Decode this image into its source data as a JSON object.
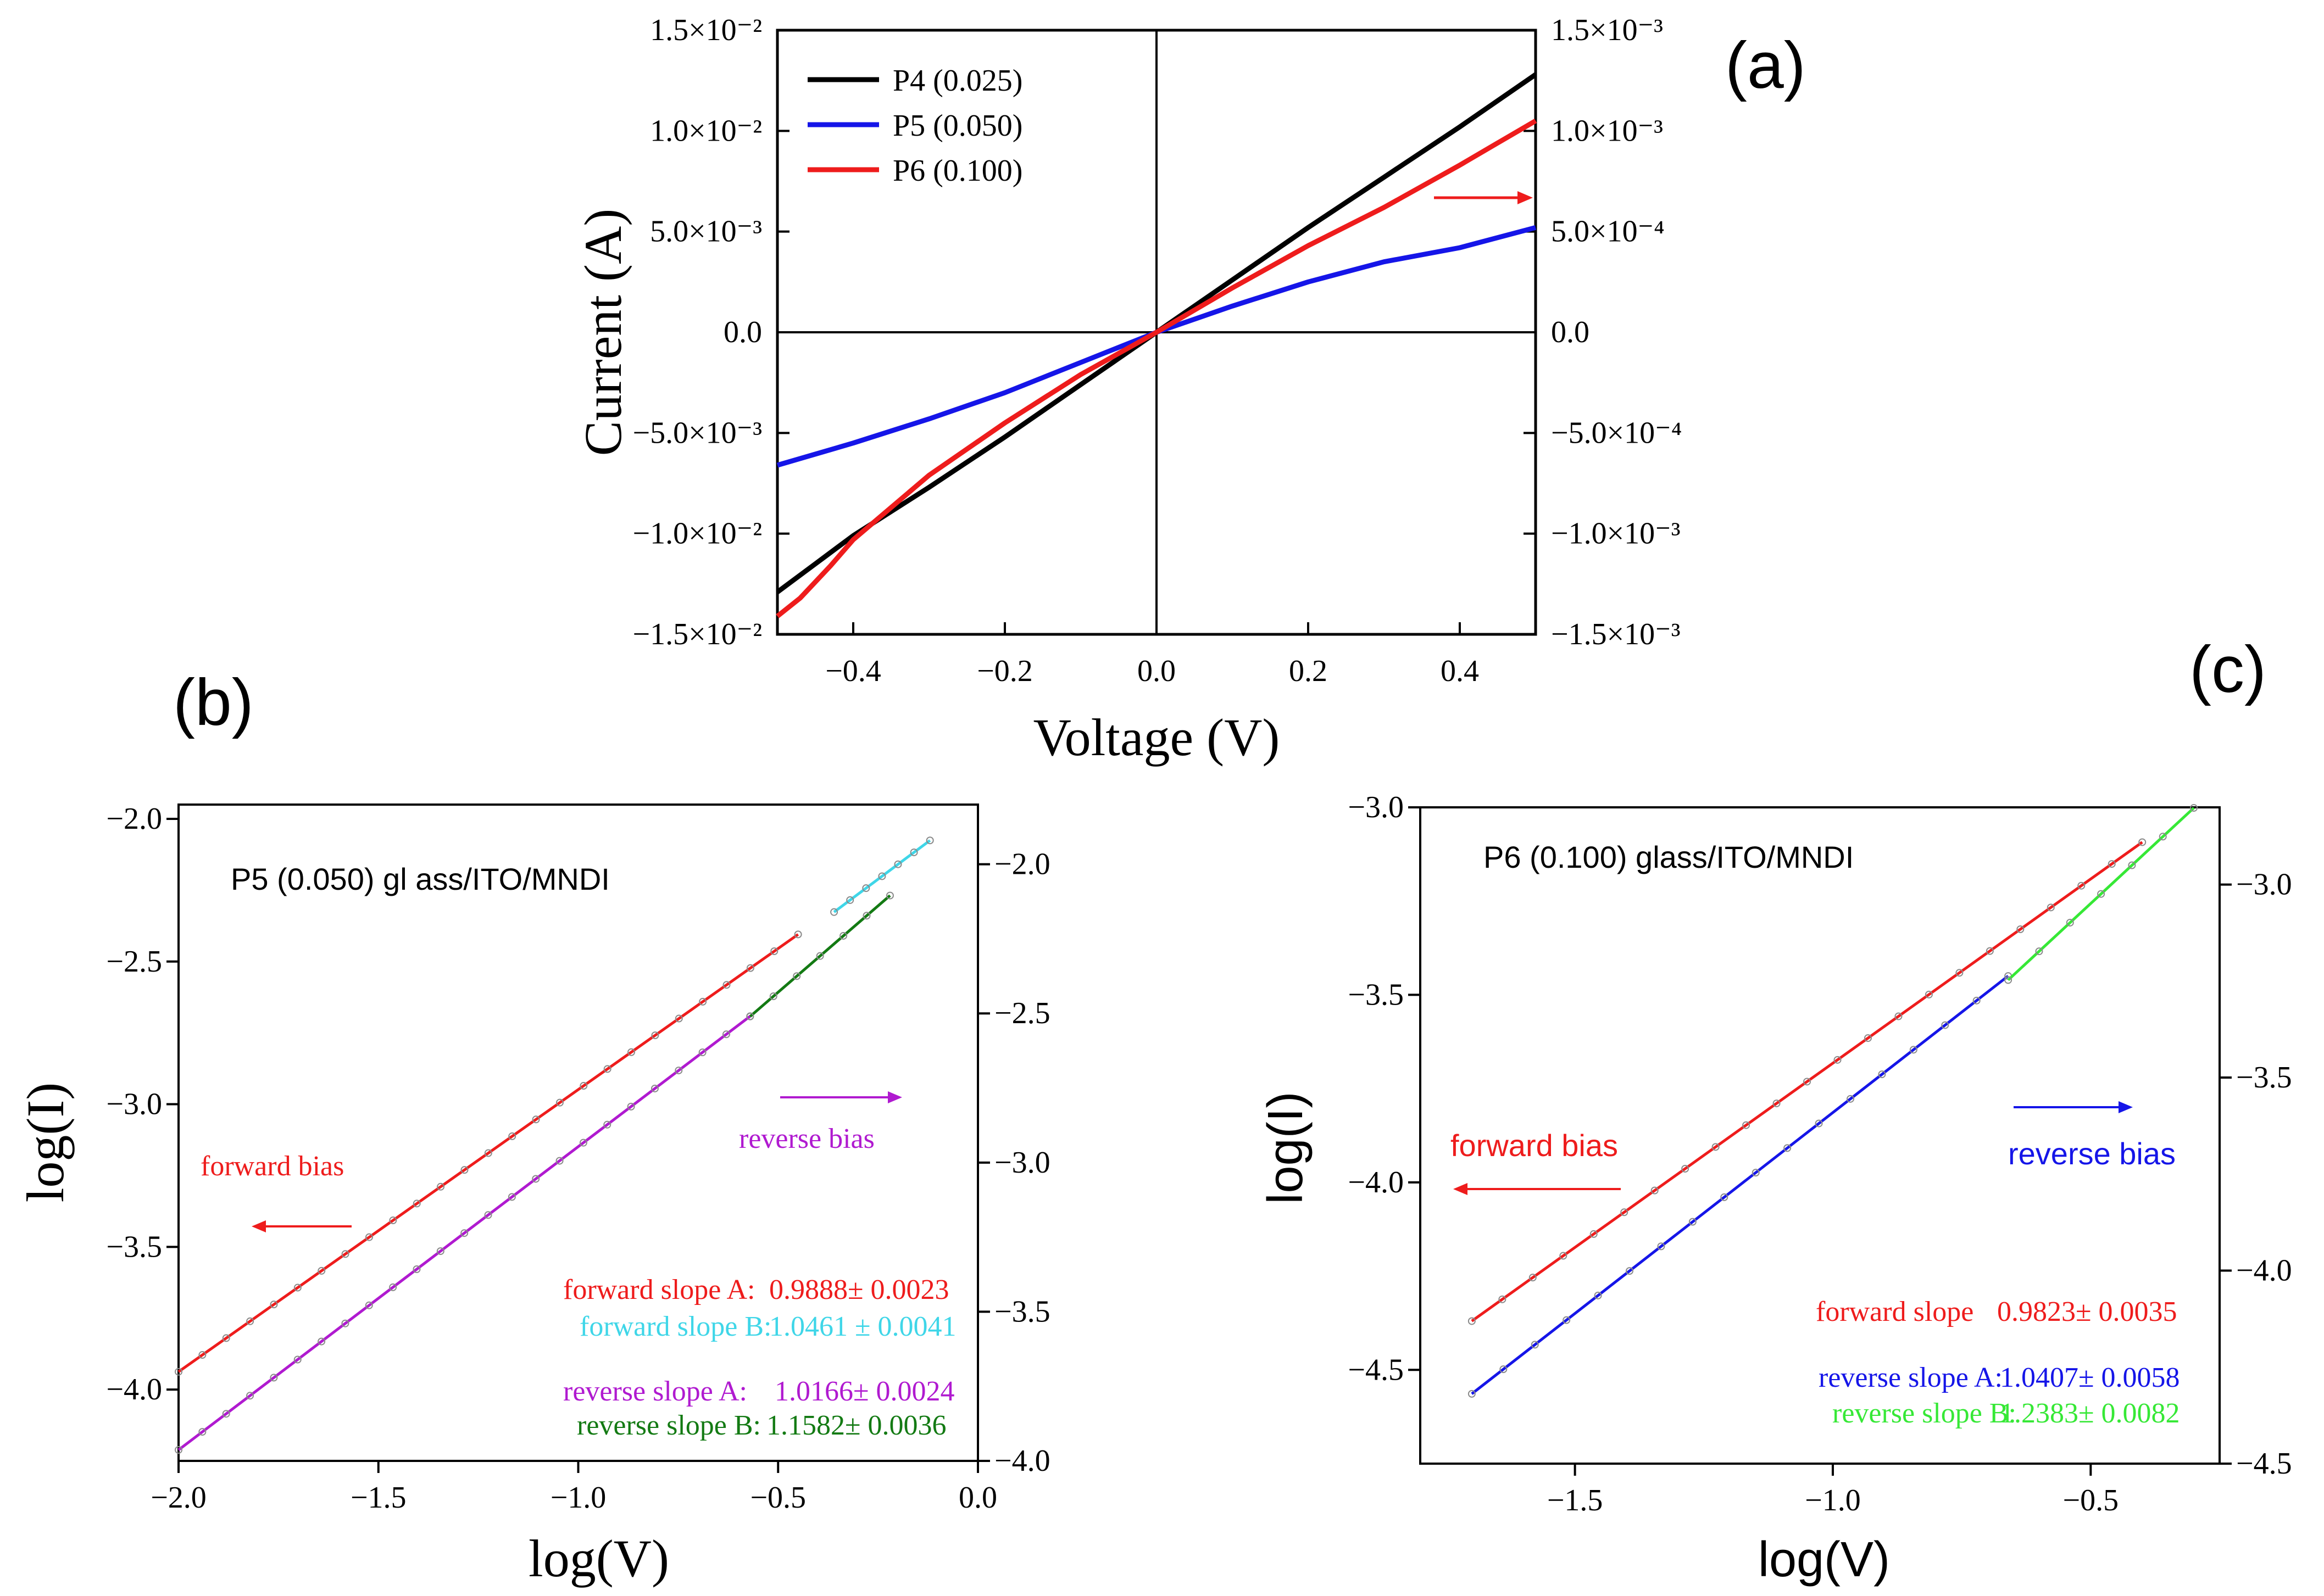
{
  "chart_data": [
    {
      "panel": "(a)",
      "type": "line",
      "xlabel": "Voltage (V)",
      "ylabel": "Current (A)",
      "xlim": [
        -0.5,
        0.5
      ],
      "ylim_left": [
        -0.015,
        0.015
      ],
      "ylim_right": [
        -0.0015,
        0.0015
      ],
      "x_ticks": [
        "−0.4",
        "−0.2",
        "0.0",
        "0.2",
        "0.4"
      ],
      "x_tick_values": [
        -0.4,
        -0.2,
        0.0,
        0.2,
        0.4
      ],
      "y_left_ticks": [
        "1.5×10⁻²",
        "1.0×10⁻²",
        "5.0×10⁻³",
        "0.0",
        "−5.0×10⁻³",
        "−1.0×10⁻²",
        "−1.5×10⁻²"
      ],
      "y_left_tick_values": [
        0.015,
        0.01,
        0.005,
        0,
        -0.005,
        -0.01,
        -0.015
      ],
      "y_right_ticks": [
        "1.5×10⁻³",
        "1.0×10⁻³",
        "5.0×10⁻⁴",
        "0.0",
        "−5.0×10⁻⁴",
        "−1.0×10⁻³",
        "−1.5×10⁻³"
      ],
      "y_right_tick_values": [
        0.0015,
        0.001,
        0.0005,
        0,
        -0.0005,
        -0.001,
        -0.0015
      ],
      "legend": "top-left",
      "series": [
        {
          "name": "P4 (0.025)",
          "color": "#000000",
          "axis": "left",
          "x": [
            -0.5,
            -0.45,
            -0.4,
            -0.3,
            -0.2,
            -0.1,
            0.0,
            0.1,
            0.2,
            0.3,
            0.4,
            0.5
          ],
          "y": [
            -0.0129,
            -0.0115,
            -0.0101,
            -0.0077,
            -0.0052,
            -0.0026,
            0.0,
            0.0026,
            0.0052,
            0.0077,
            0.0102,
            0.0128
          ]
        },
        {
          "name": "P5 (0.050)",
          "color": "#1515e8",
          "axis": "right",
          "x": [
            -0.5,
            -0.4,
            -0.3,
            -0.2,
            -0.1,
            0.0,
            0.1,
            0.2,
            0.3,
            0.4,
            0.5
          ],
          "y": [
            -0.00066,
            -0.00055,
            -0.00043,
            -0.0003,
            -0.00015,
            0.0,
            0.00013,
            0.00025,
            0.00035,
            0.00042,
            0.00052
          ]
        },
        {
          "name": "P6 (0.100)",
          "color": "#ee1c1c",
          "axis": "left",
          "x": [
            -0.5,
            -0.47,
            -0.43,
            -0.4,
            -0.3,
            -0.2,
            -0.1,
            0.0,
            0.1,
            0.2,
            0.3,
            0.4,
            0.45,
            0.5
          ],
          "y": [
            -0.0141,
            -0.0132,
            -0.0116,
            -0.0103,
            -0.0071,
            -0.0045,
            -0.0021,
            0.0,
            0.0022,
            0.0043,
            0.0062,
            0.0083,
            0.0094,
            0.0105
          ]
        }
      ],
      "annotation_arrow": "right"
    },
    {
      "panel": "(b)",
      "type": "scatter",
      "title": "P5 (0.050)  gl ass/ITO/MNDI",
      "xlabel": "log(V)",
      "ylabel": "log(I)",
      "xlim": [
        -2.0,
        0.0
      ],
      "ylim_left": [
        -4.25,
        -1.95
      ],
      "ylim_right": [
        -4.0,
        -1.8
      ],
      "x_ticks": [
        "−2.0",
        "−1.5",
        "−1.0",
        "−0.5",
        "0.0"
      ],
      "x_tick_values": [
        -2.0,
        -1.5,
        -1.0,
        -0.5,
        0.0
      ],
      "y_left_ticks": [
        "−2.0",
        "−2.5",
        "−3.0",
        "−3.5",
        "−4.0"
      ],
      "y_left_tick_values": [
        -2.0,
        -2.5,
        -3.0,
        -3.5,
        -4.0
      ],
      "y_right_ticks": [
        "−2.0",
        "−2.5",
        "−3.0",
        "−3.5",
        "−4.0"
      ],
      "y_right_tick_values": [
        -2.0,
        -2.5,
        -3.0,
        -3.5,
        -4.0
      ],
      "forward_label": "forward bias",
      "reverse_label": "reverse bias",
      "fits": [
        {
          "label": "forward slope A:",
          "value": "0.9888± 0.0023",
          "color": "#ee1c1c",
          "axis": "left",
          "x": [
            -2.0,
            -0.45
          ],
          "slope": 0.9888,
          "intercept": -1.96
        },
        {
          "label": "forward slope B:",
          "value": "1.0461 ± 0.0041",
          "color": "#3fd6e8",
          "axis": "left",
          "x": [
            -0.36,
            -0.12
          ],
          "slope": 1.0461,
          "intercept": -1.95
        },
        {
          "label": "reverse slope A:",
          "value": "1.0166± 0.0024",
          "color": "#b01ad0",
          "axis": "right",
          "x": [
            -2.0,
            -0.57
          ],
          "slope": 1.0166,
          "intercept": -1.93
        },
        {
          "label": "reverse slope B:",
          "value": "1.1582± 0.0036",
          "color": "#137a13",
          "axis": "right",
          "x": [
            -0.57,
            -0.22
          ],
          "slope": 1.1582,
          "intercept": -1.85
        }
      ],
      "label_displays": [
        {
          "label": "forward slope A:",
          "value": "0.9888± 0.0023"
        },
        {
          "label": "forward slope B:",
          "value": "1.0461 ± 0.0041"
        },
        {
          "label": "reverse slope A:",
          "value": "1.0166± 0.0024"
        },
        {
          "label": "reverse slope B:",
          "value": "1.1582± 0.0036"
        }
      ]
    },
    {
      "panel": "(c)",
      "type": "scatter",
      "title": "P6 (0.100)  glass/ITO/MNDI",
      "xlabel": "log(V)",
      "ylabel": "log(I)",
      "xlim": [
        -1.8,
        -0.25
      ],
      "ylim_left": [
        -4.75,
        -3.0
      ],
      "ylim_right": [
        -4.5,
        -2.8
      ],
      "x_ticks": [
        "−1.5",
        "−1.0",
        "−0.5"
      ],
      "x_tick_values": [
        -1.5,
        -1.0,
        -0.5
      ],
      "y_left_ticks": [
        "−3.0",
        "−3.5",
        "−4.0",
        "−4.5"
      ],
      "y_left_tick_values": [
        -3.0,
        -3.5,
        -4.0,
        -4.5
      ],
      "y_right_ticks": [
        "−3.0",
        "−3.5",
        "−4.0",
        "−4.5"
      ],
      "y_right_tick_values": [
        -3.0,
        -3.5,
        -4.0,
        -4.5
      ],
      "forward_label": "forward bias",
      "reverse_label": "reverse bias",
      "fits": [
        {
          "label": "forward slope",
          "value": "0.9823± 0.0035",
          "color": "#ee1c1c",
          "axis": "left",
          "x": [
            -1.7,
            -0.4
          ],
          "slope": 0.9823,
          "intercept": -2.7
        },
        {
          "label": "reverse slope A:",
          "value": "1.0407± 0.0058",
          "color": "#1515e8",
          "axis": "right",
          "x": [
            -1.7,
            -0.66
          ],
          "slope": 1.0407,
          "intercept": -2.55
        },
        {
          "label": "reverse slope B:",
          "value": "1.2383± 0.0082",
          "color": "#36e836",
          "axis": "right",
          "x": [
            -0.66,
            -0.3
          ],
          "slope": 1.2383,
          "intercept": -2.43
        }
      ]
    }
  ],
  "panel_labels": {
    "a": "(a)",
    "b": "(b)",
    "c": "(c)"
  },
  "colors": {
    "black": "#000000",
    "blue": "#1515e8",
    "red": "#ee1c1c"
  }
}
